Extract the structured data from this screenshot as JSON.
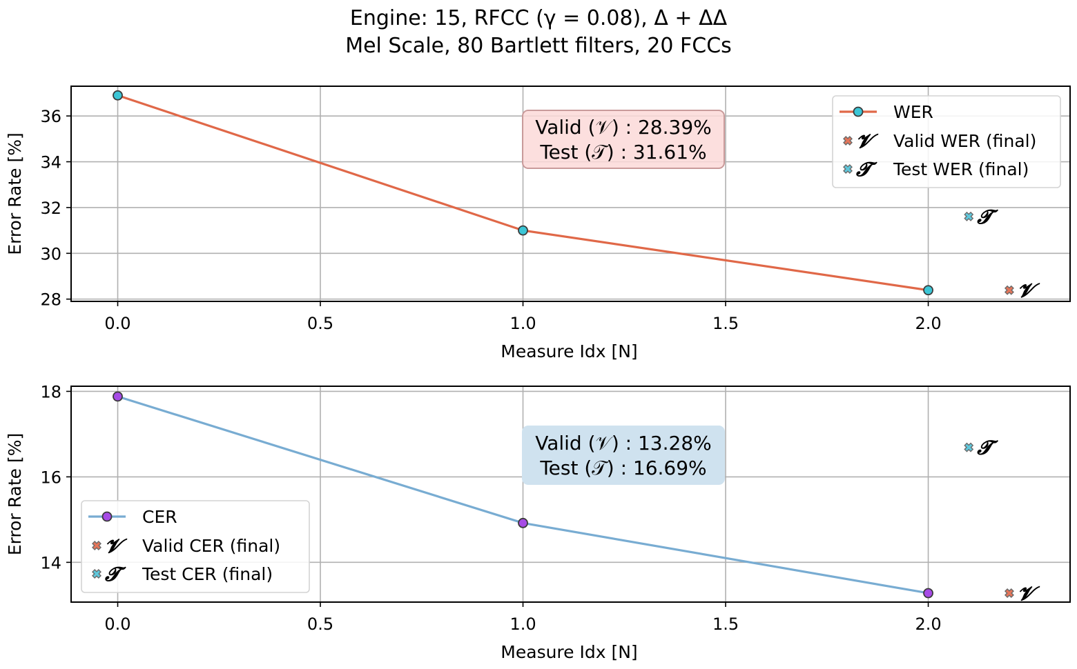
{
  "figure": {
    "title_line1": "Engine: 15, RFCC (γ = 0.08), Δ + ΔΔ",
    "title_line2": "Mel Scale, 80 Bartlett filters, 20 FCCs"
  },
  "colors": {
    "wer_line": "#e06848",
    "wer_marker": "#3cc6d6",
    "cer_line": "#78acd2",
    "cer_marker": "#a64be6",
    "valid_x": "#e57559",
    "test_x": "#5fc8dc",
    "wer_box_face": "#fcd9d8",
    "wer_box_edge": "#c99a9a",
    "cer_box_face": "#cfe2ef",
    "grid": "#b0b0b0"
  },
  "chart_data": [
    {
      "type": "line",
      "name": "wer-plot",
      "xlabel": "Measure Idx [N]",
      "ylabel": "Error Rate [%]",
      "xlim": [
        -0.115,
        2.35
      ],
      "ylim": [
        27.9,
        37.3
      ],
      "xticks": [
        0.0,
        0.5,
        1.0,
        1.5,
        2.0
      ],
      "xtick_labels": [
        "0.0",
        "0.5",
        "1.0",
        "1.5",
        "2.0"
      ],
      "yticks": [
        28,
        30,
        32,
        34,
        36
      ],
      "ytick_labels": [
        "28",
        "30",
        "32",
        "34",
        "36"
      ],
      "grid": true,
      "series": [
        {
          "name": "WER",
          "x": [
            0,
            1,
            2
          ],
          "y": [
            36.9,
            31.0,
            28.39
          ]
        }
      ],
      "final_points": [
        {
          "label": "Valid WER (final)",
          "symbol": "𝓥",
          "x": 2.2,
          "y": 28.39
        },
        {
          "label": "Test WER (final)",
          "symbol": "𝓣",
          "x": 2.1,
          "y": 31.61
        }
      ],
      "annotation": {
        "line1": "Valid (𝒱) :  28.39%",
        "line2": "Test (𝒯) :  31.61%"
      },
      "legend_position": "upper right"
    },
    {
      "type": "line",
      "name": "cer-plot",
      "xlabel": "Measure Idx [N]",
      "ylabel": "Error Rate [%]",
      "xlim": [
        -0.115,
        2.35
      ],
      "ylim": [
        13.07,
        18.12
      ],
      "xticks": [
        0.0,
        0.5,
        1.0,
        1.5,
        2.0
      ],
      "xtick_labels": [
        "0.0",
        "0.5",
        "1.0",
        "1.5",
        "2.0"
      ],
      "yticks": [
        14,
        16,
        18
      ],
      "ytick_labels": [
        "14",
        "16",
        "18"
      ],
      "grid": true,
      "series": [
        {
          "name": "CER",
          "x": [
            0,
            1,
            2
          ],
          "y": [
            17.88,
            14.92,
            13.28
          ]
        }
      ],
      "final_points": [
        {
          "label": "Valid CER (final)",
          "symbol": "𝓥",
          "x": 2.2,
          "y": 13.28
        },
        {
          "label": "Test CER (final)",
          "symbol": "𝓣",
          "x": 2.1,
          "y": 16.69
        }
      ],
      "annotation": {
        "line1": "Valid (𝒱) :  13.28%",
        "line2": "Test (𝒯) :  16.69%"
      },
      "legend_position": "lower left"
    }
  ]
}
